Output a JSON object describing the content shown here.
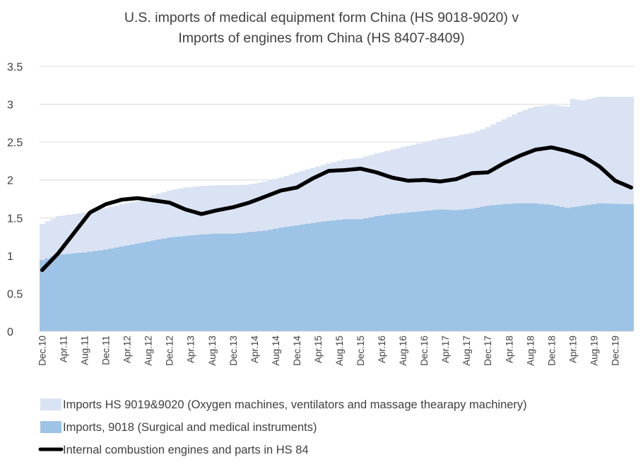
{
  "chart_data": {
    "type": "area",
    "title": [
      "U.S. imports of medical equipment form China (HS 9018-9020) v",
      "Imports of engines from China (HS 8407-8409)"
    ],
    "xlabel": "",
    "ylabel": "",
    "ylim": [
      0,
      3.5
    ],
    "yticks": [
      "0",
      "0.5",
      "1",
      "1.5",
      "2",
      "2.5",
      "3",
      "3.5"
    ],
    "grid": true,
    "legend_position": "bottom",
    "x_tick_labels": [
      "Dec.10",
      "Apr.11",
      "Aug.11",
      "Dec.11",
      "Apr.12",
      "Aug.12",
      "Dec.12",
      "Apr.13",
      "Aug.13",
      "Dec.13",
      "Apr.14",
      "Aug.14",
      "Dec.14",
      "Apr.15",
      "Aug.15",
      "Dec.15",
      "Apr.16",
      "Aug.16",
      "Dec.16",
      "Apr.17",
      "Aug.17",
      "Dec.17",
      "Apr.18",
      "Aug.18",
      "Dec.18",
      "Apr.19",
      "Aug.19",
      "Dec.19"
    ],
    "months_start": "Dec.10",
    "months_end": "Mar.20",
    "series": [
      {
        "name": "Imports HS 9019&9020 (Oxygen machines, ventilators and massage thearapy machinery)",
        "kind": "area-stacked-total",
        "color": "#dae3f3",
        "anchors": [
          [
            0,
            1.42
          ],
          [
            3,
            1.52
          ],
          [
            6,
            1.55
          ],
          [
            9,
            1.58
          ],
          [
            12,
            1.63
          ],
          [
            15,
            1.68
          ],
          [
            18,
            1.72
          ],
          [
            21,
            1.8
          ],
          [
            24,
            1.86
          ],
          [
            27,
            1.9
          ],
          [
            30,
            1.92
          ],
          [
            33,
            1.93
          ],
          [
            36,
            1.93
          ],
          [
            39,
            1.94
          ],
          [
            42,
            1.98
          ],
          [
            45,
            2.03
          ],
          [
            48,
            2.1
          ],
          [
            51,
            2.16
          ],
          [
            54,
            2.22
          ],
          [
            57,
            2.27
          ],
          [
            60,
            2.29
          ],
          [
            63,
            2.35
          ],
          [
            66,
            2.4
          ],
          [
            69,
            2.45
          ],
          [
            72,
            2.5
          ],
          [
            75,
            2.55
          ],
          [
            78,
            2.58
          ],
          [
            81,
            2.62
          ],
          [
            84,
            2.7
          ],
          [
            87,
            2.8
          ],
          [
            90,
            2.9
          ],
          [
            93,
            2.97
          ],
          [
            96,
            2.99
          ],
          [
            99,
            2.97
          ],
          [
            100,
            3.07
          ],
          [
            102,
            3.05
          ],
          [
            105,
            3.1
          ],
          [
            111,
            3.1
          ]
        ]
      },
      {
        "name": "Imports, 9018 (Surgical and medical instruments)",
        "kind": "area",
        "color": "#9dc3e6",
        "anchors": [
          [
            0,
            0.94
          ],
          [
            3,
            1.01
          ],
          [
            6,
            1.03
          ],
          [
            9,
            1.05
          ],
          [
            12,
            1.08
          ],
          [
            15,
            1.12
          ],
          [
            18,
            1.16
          ],
          [
            21,
            1.2
          ],
          [
            24,
            1.24
          ],
          [
            27,
            1.26
          ],
          [
            30,
            1.28
          ],
          [
            33,
            1.29
          ],
          [
            36,
            1.29
          ],
          [
            39,
            1.31
          ],
          [
            42,
            1.33
          ],
          [
            45,
            1.37
          ],
          [
            48,
            1.4
          ],
          [
            51,
            1.43
          ],
          [
            54,
            1.46
          ],
          [
            57,
            1.48
          ],
          [
            60,
            1.48
          ],
          [
            63,
            1.52
          ],
          [
            66,
            1.55
          ],
          [
            69,
            1.57
          ],
          [
            72,
            1.59
          ],
          [
            75,
            1.61
          ],
          [
            78,
            1.6
          ],
          [
            81,
            1.62
          ],
          [
            84,
            1.66
          ],
          [
            87,
            1.68
          ],
          [
            90,
            1.69
          ],
          [
            93,
            1.69
          ],
          [
            96,
            1.67
          ],
          [
            99,
            1.63
          ],
          [
            102,
            1.66
          ],
          [
            105,
            1.69
          ],
          [
            111,
            1.68
          ]
        ]
      },
      {
        "name": "Internal combustion engines and parts in HS 84",
        "kind": "line",
        "color": "#000000",
        "anchors": [
          [
            0,
            0.81
          ],
          [
            3,
            1.03
          ],
          [
            6,
            1.3
          ],
          [
            9,
            1.57
          ],
          [
            12,
            1.68
          ],
          [
            15,
            1.74
          ],
          [
            18,
            1.76
          ],
          [
            21,
            1.73
          ],
          [
            24,
            1.7
          ],
          [
            27,
            1.61
          ],
          [
            30,
            1.55
          ],
          [
            33,
            1.6
          ],
          [
            36,
            1.64
          ],
          [
            39,
            1.7
          ],
          [
            42,
            1.78
          ],
          [
            45,
            1.86
          ],
          [
            48,
            1.9
          ],
          [
            51,
            2.02
          ],
          [
            54,
            2.12
          ],
          [
            57,
            2.13
          ],
          [
            60,
            2.15
          ],
          [
            63,
            2.1
          ],
          [
            66,
            2.03
          ],
          [
            69,
            1.99
          ],
          [
            72,
            2.0
          ],
          [
            75,
            1.98
          ],
          [
            78,
            2.01
          ],
          [
            81,
            2.09
          ],
          [
            84,
            2.1
          ],
          [
            87,
            2.22
          ],
          [
            90,
            2.32
          ],
          [
            93,
            2.4
          ],
          [
            96,
            2.43
          ],
          [
            99,
            2.38
          ],
          [
            102,
            2.31
          ],
          [
            105,
            2.18
          ],
          [
            108,
            1.99
          ],
          [
            111,
            1.9
          ]
        ]
      }
    ]
  }
}
